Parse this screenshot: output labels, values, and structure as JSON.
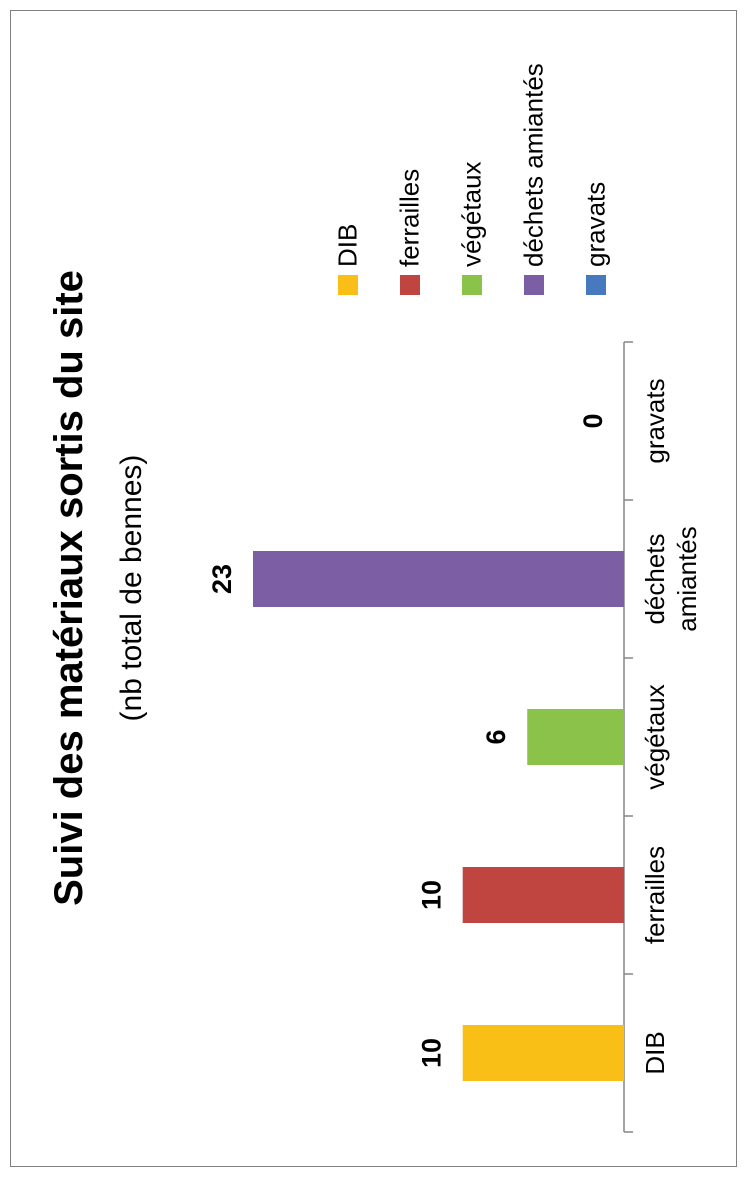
{
  "chart_data": {
    "type": "bar",
    "title": "Suivi des matériaux sortis du site",
    "subtitle": "(nb total de bennes)",
    "categories": [
      "DIB",
      "ferrailles",
      "végétaux",
      "déchets amiantés",
      "gravats"
    ],
    "values": [
      10,
      10,
      6,
      23,
      0
    ],
    "colors": [
      "#F9BF16",
      "#C0443F",
      "#8BC34A",
      "#7B5EA4",
      "#4679BD"
    ],
    "ylim": [
      0,
      23
    ],
    "legend_position": "right",
    "grid": false
  },
  "legend": [
    {
      "label": "DIB",
      "color": "#F9BF16"
    },
    {
      "label": "ferrailles",
      "color": "#C0443F"
    },
    {
      "label": "végétaux",
      "color": "#8BC34A"
    },
    {
      "label": "déchets amiantés",
      "color": "#7B5EA4"
    },
    {
      "label": "gravats",
      "color": "#4679BD"
    }
  ]
}
